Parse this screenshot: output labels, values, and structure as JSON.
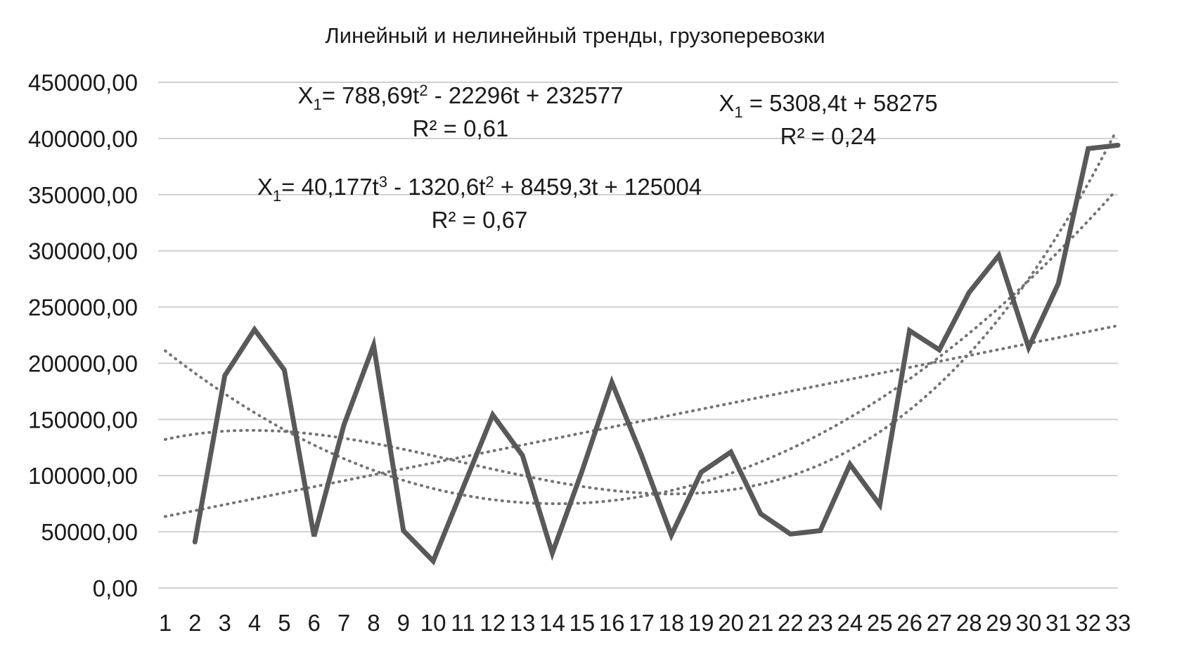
{
  "chart_data": {
    "type": "line",
    "title": "Линейный и нелинейный тренды, грузоперевозки",
    "xlabel": "",
    "ylabel": "",
    "ylim": [
      0,
      450000
    ],
    "y_ticks": [
      "0,00",
      "50000,00",
      "100000,00",
      "150000,00",
      "200000,00",
      "250000,00",
      "300000,00",
      "350000,00",
      "400000,00",
      "450000,00"
    ],
    "categories": [
      "1",
      "2",
      "3",
      "4",
      "5",
      "6",
      "7",
      "8",
      "9",
      "10",
      "11",
      "12",
      "13",
      "14",
      "15",
      "16",
      "17",
      "18",
      "19",
      "20",
      "21",
      "22",
      "23",
      "24",
      "25",
      "26",
      "27",
      "28",
      "29",
      "30",
      "31",
      "32",
      "33"
    ],
    "grid": true,
    "legend": "none",
    "series": [
      {
        "x": [
          2,
          3,
          4,
          5,
          6,
          7,
          8,
          9,
          10,
          11,
          12,
          13,
          14,
          15,
          16,
          17,
          18,
          19,
          20,
          21,
          22,
          23,
          24,
          25,
          26,
          27,
          28,
          29,
          30,
          31,
          32,
          33
        ],
        "values": [
          41000,
          189000,
          230000,
          194000,
          46000,
          145000,
          216000,
          51000,
          24000,
          89000,
          154000,
          118000,
          31000,
          104000,
          183000,
          118000,
          47000,
          103000,
          121000,
          66000,
          48000,
          51000,
          110000,
          74000,
          229000,
          212000,
          263000,
          296000,
          214000,
          271000,
          391000,
          394000
        ]
      }
    ],
    "trendlines": [
      {
        "kind": "linear",
        "coefficients": [
          5308.4,
          58275
        ],
        "r2": 0.24
      },
      {
        "kind": "poly2",
        "coefficients": [
          788.69,
          -22296,
          232577
        ],
        "r2": 0.61
      },
      {
        "kind": "poly3",
        "coefficients": [
          40.177,
          -1320.6,
          8459.3,
          125004
        ],
        "r2": 0.67
      }
    ],
    "annotations": [
      {
        "sym": "X",
        "sub": "1",
        "parts": [
          [
            "= 788,69t",
            ""
          ],
          [
            "2",
            "sup"
          ],
          [
            " - 22296t + 232577",
            ""
          ]
        ],
        "r2": "R² = 0,61"
      },
      {
        "sym": "X",
        "sub": "1",
        "parts": [
          [
            " = 5308,4t + 58275",
            ""
          ]
        ],
        "r2": "R² = 0,24"
      },
      {
        "sym": "X",
        "sub": "1",
        "parts": [
          [
            "= 40,177t",
            ""
          ],
          [
            "3",
            "sup"
          ],
          [
            " - 1320,6t",
            ""
          ],
          [
            "2",
            "sup"
          ],
          [
            " + 8459,3t + 125004",
            ""
          ]
        ],
        "r2": "R² = 0,67"
      }
    ]
  }
}
